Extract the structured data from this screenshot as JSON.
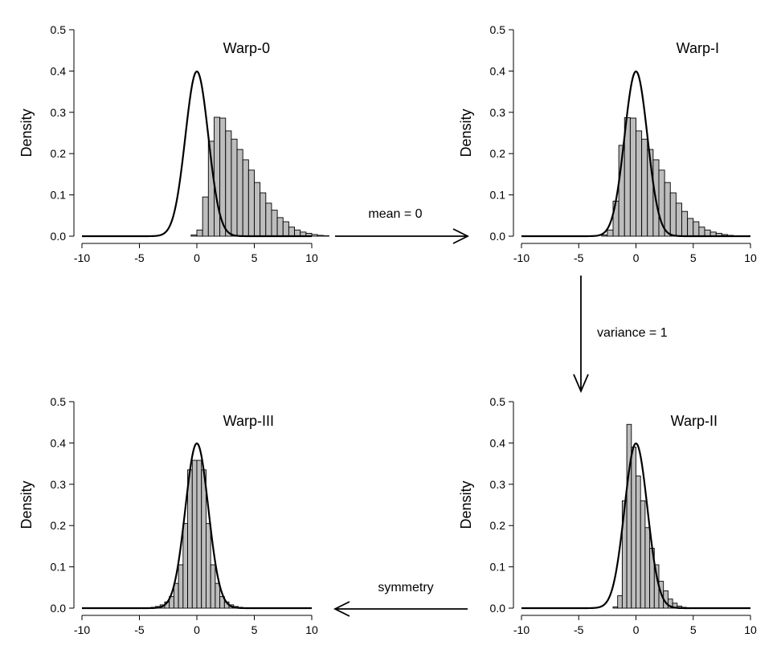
{
  "chart_data": [
    {
      "type": "bar",
      "id": "warp-0",
      "title": "Warp-0",
      "ylabel": "Density",
      "xlabel": "",
      "xlim": [
        -10,
        10
      ],
      "ylim": [
        0,
        0.5
      ],
      "xticks": [
        -10,
        -5,
        0,
        5,
        10
      ],
      "yticks": [
        0.0,
        0.1,
        0.2,
        0.3,
        0.4,
        0.5
      ],
      "bin_width": 0.5,
      "bin_start": -0.5,
      "values": [
        0.003,
        0.015,
        0.095,
        0.23,
        0.288,
        0.286,
        0.255,
        0.235,
        0.21,
        0.185,
        0.16,
        0.13,
        0.105,
        0.08,
        0.063,
        0.045,
        0.035,
        0.022,
        0.015,
        0.01,
        0.007,
        0.004,
        0.002,
        0.001
      ],
      "curve": {
        "name": "N(0,1) density",
        "mean": 0,
        "sd": 1
      }
    },
    {
      "type": "bar",
      "id": "warp-i",
      "title": "Warp-I",
      "ylabel": "Density",
      "xlabel": "",
      "xlim": [
        -10,
        10
      ],
      "ylim": [
        0,
        0.5
      ],
      "xticks": [
        -10,
        -5,
        0,
        5,
        10
      ],
      "yticks": [
        0.0,
        0.1,
        0.2,
        0.3,
        0.4,
        0.5
      ],
      "bin_width": 0.5,
      "bin_start": -3.0,
      "values": [
        0.003,
        0.015,
        0.085,
        0.22,
        0.287,
        0.286,
        0.255,
        0.235,
        0.21,
        0.185,
        0.16,
        0.13,
        0.105,
        0.08,
        0.06,
        0.043,
        0.035,
        0.022,
        0.015,
        0.01,
        0.007,
        0.004,
        0.002,
        0.001
      ],
      "curve": {
        "name": "N(0,1) density",
        "mean": 0,
        "sd": 1
      }
    },
    {
      "type": "bar",
      "id": "warp-ii",
      "title": "Warp-II",
      "ylabel": "Density",
      "xlabel": "",
      "xlim": [
        -10,
        10
      ],
      "ylim": [
        0,
        0.5
      ],
      "xticks": [
        -10,
        -5,
        0,
        5,
        10
      ],
      "yticks": [
        0.0,
        0.1,
        0.2,
        0.3,
        0.4,
        0.5
      ],
      "bin_width": 0.4,
      "bin_start": -2.0,
      "values": [
        0.003,
        0.03,
        0.26,
        0.445,
        0.39,
        0.32,
        0.26,
        0.195,
        0.145,
        0.105,
        0.065,
        0.042,
        0.022,
        0.012,
        0.005,
        0.002
      ],
      "curve": {
        "name": "N(0,1) density",
        "mean": 0,
        "sd": 1
      }
    },
    {
      "type": "bar",
      "id": "warp-iii",
      "title": "Warp-III",
      "ylabel": "Density",
      "xlabel": "",
      "xlim": [
        -10,
        10
      ],
      "ylim": [
        0,
        0.5
      ],
      "xticks": [
        -10,
        -5,
        0,
        5,
        10
      ],
      "yticks": [
        0.0,
        0.1,
        0.2,
        0.3,
        0.4,
        0.5
      ],
      "bin_width": 0.4,
      "bin_start": -4.0,
      "values": [
        0.002,
        0.004,
        0.008,
        0.015,
        0.028,
        0.06,
        0.105,
        0.205,
        0.335,
        0.358,
        0.358,
        0.335,
        0.205,
        0.105,
        0.06,
        0.028,
        0.015,
        0.008,
        0.004,
        0.002
      ],
      "curve": {
        "name": "N(0,1) density",
        "mean": 0,
        "sd": 1
      }
    }
  ],
  "transitions": [
    {
      "from": "warp-0",
      "to": "warp-i",
      "label": "mean = 0",
      "direction": "right"
    },
    {
      "from": "warp-i",
      "to": "warp-ii",
      "label": "variance = 1",
      "direction": "down"
    },
    {
      "from": "warp-ii",
      "to": "warp-iii",
      "label": "symmetry",
      "direction": "left"
    }
  ]
}
